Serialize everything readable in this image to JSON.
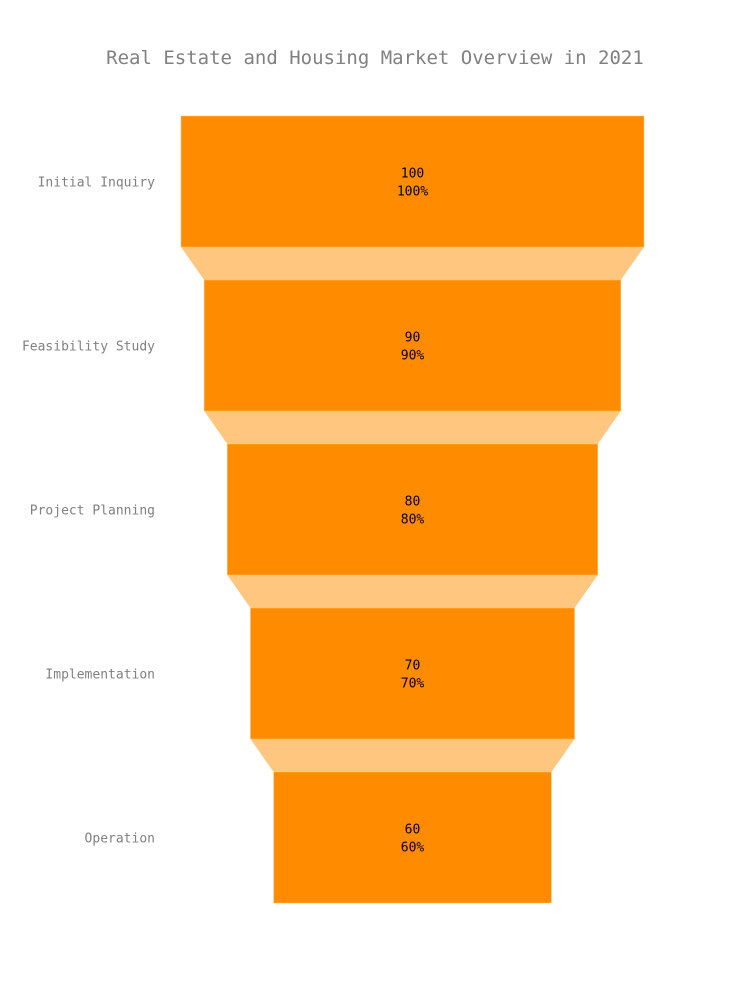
{
  "chart_data": {
    "type": "funnel",
    "title": "Real Estate and Housing Market Overview in 2021",
    "categories": [
      "Initial Inquiry",
      "Feasibility Study",
      "Project Planning",
      "Implementation",
      "Operation"
    ],
    "values": [
      100,
      90,
      80,
      70,
      60
    ],
    "percent_labels": [
      "100%",
      "90%",
      "80%",
      "70%",
      "60%"
    ],
    "colors": {
      "bar": "#FF8C00",
      "connector": "#FFC680",
      "title": "#808080",
      "axis_label": "#808080",
      "value_text": "#000000"
    }
  }
}
